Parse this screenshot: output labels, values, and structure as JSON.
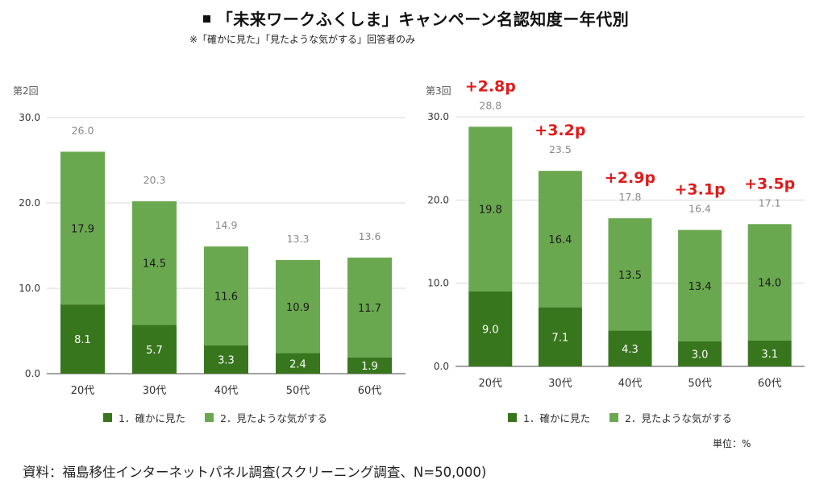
{
  "title": "「未来ワークふくしま」キャンペーン名認知度ー年代別",
  "subtitle": "※「確かに見た」「見たような気がする」回答者のみ",
  "unit_note": "単位：%",
  "source_note": "資料：福島移住インターネットパネル調査(スクリーニング調査、N=50,000)",
  "colors": {
    "series1": "#38761d",
    "series2": "#6aa84f",
    "delta": "#e01b1b",
    "total": "#888888",
    "grid": "#d9d9d9"
  },
  "chart_data": [
    {
      "type": "bar",
      "stacked": true,
      "panel_label": "第2回",
      "categories": [
        "20代",
        "30代",
        "40代",
        "50代",
        "60代"
      ],
      "ylim": [
        0,
        30
      ],
      "yticks": [
        "0.0",
        "10.0",
        "20.0",
        "30.0"
      ],
      "series": [
        {
          "name": "1．確かに見た",
          "values": [
            8.1,
            5.7,
            3.3,
            2.4,
            1.9
          ]
        },
        {
          "name": "2．見たような気がする",
          "values": [
            17.9,
            14.5,
            11.6,
            10.9,
            11.7
          ]
        }
      ],
      "totals": [
        "26.0",
        "20.3",
        "14.9",
        "13.3",
        "13.6"
      ],
      "legend": [
        "1．確かに見た",
        "2．見たような気がする"
      ]
    },
    {
      "type": "bar",
      "stacked": true,
      "panel_label": "第3回",
      "categories": [
        "20代",
        "30代",
        "40代",
        "50代",
        "60代"
      ],
      "ylim": [
        0,
        30
      ],
      "yticks": [
        "0.0",
        "10.0",
        "20.0",
        "30.0"
      ],
      "series": [
        {
          "name": "1．確かに見た",
          "values": [
            9.0,
            7.1,
            4.3,
            3.0,
            3.1
          ]
        },
        {
          "name": "2．見たような気がする",
          "values": [
            19.8,
            16.4,
            13.5,
            13.4,
            14.0
          ]
        }
      ],
      "totals": [
        "28.8",
        "23.5",
        "17.8",
        "16.4",
        "17.1"
      ],
      "deltas": [
        "+2.8p",
        "+3.2p",
        "+2.9p",
        "+3.1p",
        "+3.5p"
      ],
      "legend": [
        "1．確かに見た",
        "2．見たような気がする"
      ]
    }
  ]
}
